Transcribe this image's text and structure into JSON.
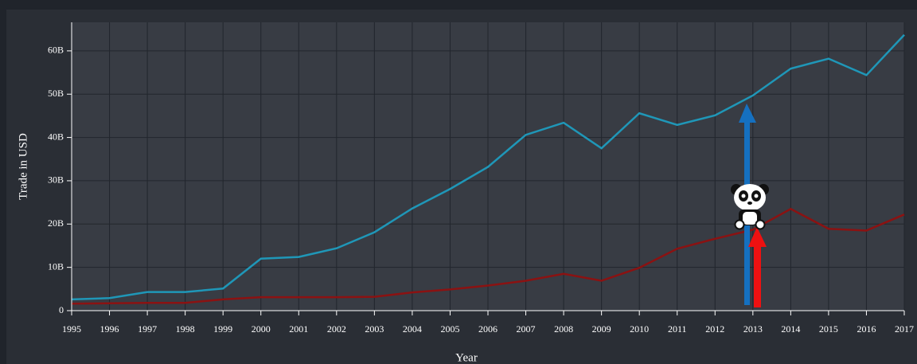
{
  "chart_data": {
    "type": "line",
    "y_label": "Trade in USD",
    "x_label": "Year",
    "x": [
      1995,
      1996,
      1997,
      1998,
      1999,
      2000,
      2001,
      2002,
      2003,
      2004,
      2005,
      2006,
      2007,
      2008,
      2009,
      2010,
      2011,
      2012,
      2013,
      2014,
      2015,
      2016,
      2017
    ],
    "series": [
      {
        "color": "#1f97b8",
        "values": [
          2.6,
          2.9,
          4.3,
          4.3,
          5.1,
          12.0,
          12.4,
          14.4,
          18.1,
          23.6,
          28.1,
          33.2,
          40.6,
          43.4,
          37.5,
          45.6,
          42.9,
          45.1,
          49.7,
          55.9,
          58.2,
          54.4,
          63.7
        ]
      },
      {
        "color": "#8b1212",
        "values": [
          1.6,
          1.7,
          1.8,
          1.8,
          2.6,
          3.1,
          3.1,
          3.1,
          3.2,
          4.2,
          4.9,
          5.8,
          6.9,
          8.5,
          6.9,
          9.9,
          14.3,
          16.6,
          18.7,
          23.5,
          18.9,
          18.5,
          22.2
        ]
      }
    ],
    "xlim": [
      1995,
      2017
    ],
    "xticks": [
      1995,
      1996,
      1997,
      1998,
      1999,
      2000,
      2001,
      2002,
      2003,
      2004,
      2005,
      2006,
      2007,
      2008,
      2009,
      2010,
      2011,
      2012,
      2013,
      2014,
      2015,
      2016,
      2017
    ],
    "ylim": [
      0,
      66.6
    ],
    "yticks": [
      0,
      {
        "value": 10,
        "label": "10B"
      },
      {
        "value": 20,
        "label": "20B"
      },
      {
        "value": 30,
        "label": "30B"
      },
      {
        "value": 40,
        "label": "40B"
      },
      {
        "value": 50,
        "label": "50B"
      },
      {
        "value": 60,
        "label": "60B"
      }
    ],
    "grid": true
  }
}
